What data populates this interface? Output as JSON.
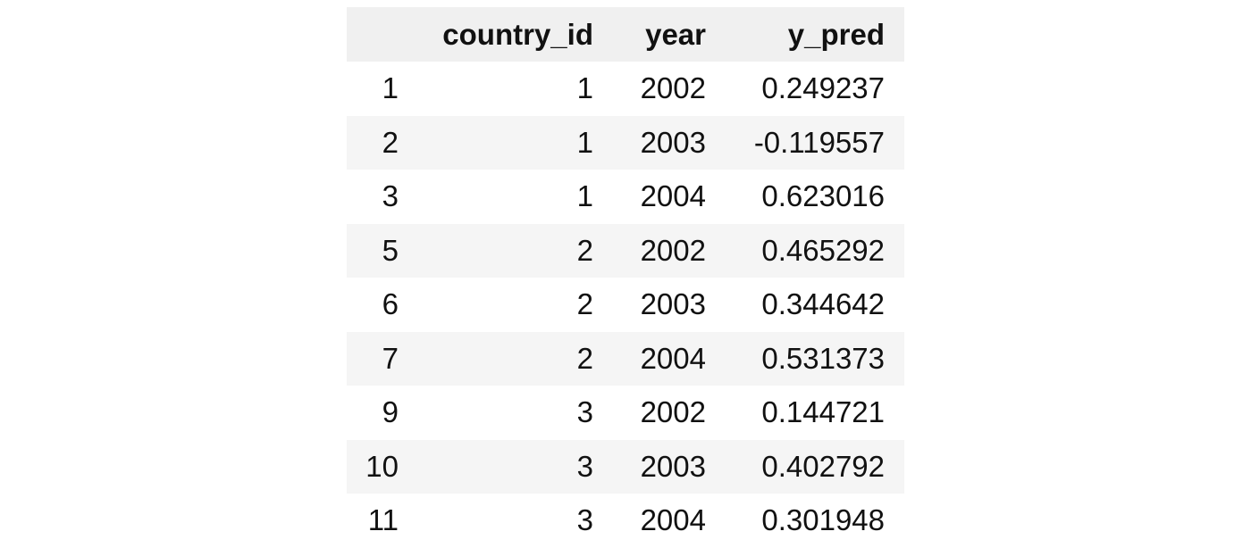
{
  "table": {
    "columns": [
      "",
      "country_id",
      "year",
      "y_pred"
    ],
    "rows": [
      {
        "index": "1",
        "country_id": "1",
        "year": "2002",
        "y_pred": "0.249237"
      },
      {
        "index": "2",
        "country_id": "1",
        "year": "2003",
        "y_pred": "-0.119557"
      },
      {
        "index": "3",
        "country_id": "1",
        "year": "2004",
        "y_pred": "0.623016"
      },
      {
        "index": "5",
        "country_id": "2",
        "year": "2002",
        "y_pred": "0.465292"
      },
      {
        "index": "6",
        "country_id": "2",
        "year": "2003",
        "y_pred": "0.344642"
      },
      {
        "index": "7",
        "country_id": "2",
        "year": "2004",
        "y_pred": "0.531373"
      },
      {
        "index": "9",
        "country_id": "3",
        "year": "2002",
        "y_pred": "0.144721"
      },
      {
        "index": "10",
        "country_id": "3",
        "year": "2003",
        "y_pred": "0.402792"
      },
      {
        "index": "11",
        "country_id": "3",
        "year": "2004",
        "y_pred": "0.301948"
      }
    ]
  }
}
